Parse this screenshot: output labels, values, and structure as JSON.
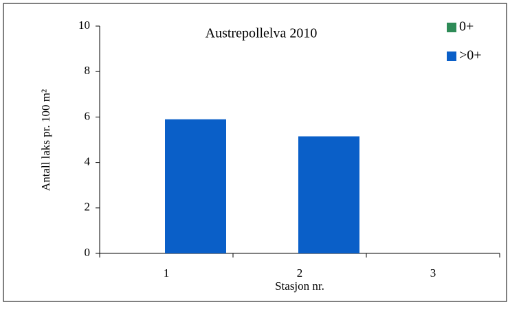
{
  "chart_data": {
    "type": "stacked_bar",
    "title": "Austrepollelva 2010",
    "x_label": "Stasjon nr.",
    "y_label": "Antall laks pr. 100 m²",
    "categories": [
      "1",
      "2",
      "3"
    ],
    "series": [
      {
        "name": "0+",
        "color": "#2e8b57",
        "values": [
          0,
          0,
          0
        ]
      },
      {
        "name": ">0+",
        "color": "#0a5fc8",
        "values": [
          5.9,
          5.15,
          0
        ]
      }
    ],
    "ylim": [
      0,
      10
    ],
    "yticks": [
      0,
      2,
      4,
      6,
      8,
      10
    ],
    "grid": false,
    "legend": "top-right"
  }
}
